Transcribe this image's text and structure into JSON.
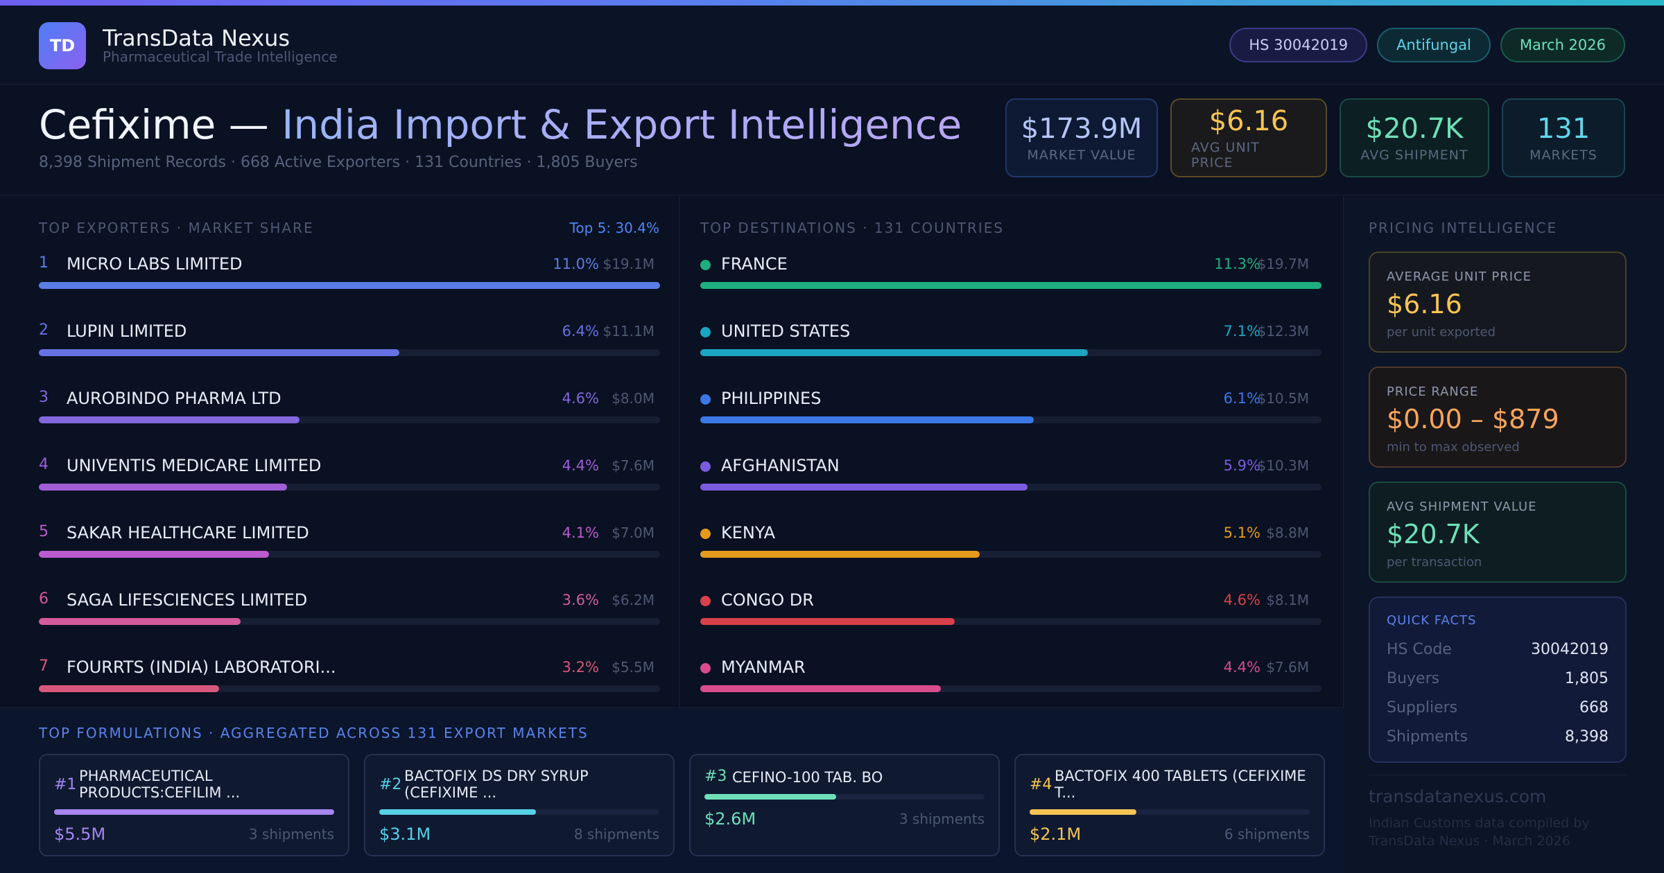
{
  "brand": {
    "logo_text": "TD",
    "name": "TransData Nexus",
    "subtitle": "Pharmaceutical Trade Intelligence"
  },
  "pills": {
    "hs": "HS 30042019",
    "category": "Antifungal",
    "date": "March 2026"
  },
  "title": {
    "main": "Cefixime — ",
    "accent": "India Import & Export Intelligence",
    "subtitle": "8,398 Shipment Records · 668 Active Exporters · 131 Countries · 1,805 Buyers"
  },
  "kpis": [
    {
      "value": "$173.9M",
      "label": "MARKET VALUE"
    },
    {
      "value": "$6.16",
      "label": "AVG UNIT PRICE"
    },
    {
      "value": "$20.7K",
      "label": "AVG SHIPMENT"
    },
    {
      "value": "131",
      "label": "MARKETS"
    }
  ],
  "exporters": {
    "title": "TOP EXPORTERS · MARKET SHARE",
    "note": "Top 5: 30.4%",
    "items": [
      {
        "rank": "1",
        "name": "MICRO LABS LIMITED",
        "pct": "11.0%",
        "amount": "$19.1M",
        "share": 1.0,
        "color": "#5b7de6"
      },
      {
        "rank": "2",
        "name": "LUPIN LIMITED",
        "pct": "6.4%",
        "amount": "$11.1M",
        "share": 0.58,
        "color": "#6672e3"
      },
      {
        "rank": "3",
        "name": "AUROBINDO PHARMA LTD",
        "pct": "4.6%",
        "amount": "$8.0M",
        "share": 0.42,
        "color": "#8367de"
      },
      {
        "rank": "4",
        "name": "UNIVENTIS MEDICARE LIMITED",
        "pct": "4.4%",
        "amount": "$7.6M",
        "share": 0.4,
        "color": "#a05dd6"
      },
      {
        "rank": "5",
        "name": "SAKAR HEALTHCARE LIMITED",
        "pct": "4.1%",
        "amount": "$7.0M",
        "share": 0.37,
        "color": "#bb5bce"
      },
      {
        "rank": "6",
        "name": "SAGA LIFESCIENCES LIMITED",
        "pct": "3.6%",
        "amount": "$6.2M",
        "share": 0.325,
        "color": "#d35a9c"
      },
      {
        "rank": "7",
        "name": "FOURRTS (INDIA) LABORATORI...",
        "pct": "3.2%",
        "amount": "$5.5M",
        "share": 0.29,
        "color": "#d8587b"
      }
    ]
  },
  "destinations": {
    "title": "TOP DESTINATIONS · 131 COUNTRIES",
    "items": [
      {
        "name": "FRANCE",
        "pct": "11.3%",
        "amount": "$19.7M",
        "share": 1.0,
        "color": "#1fae7f"
      },
      {
        "name": "UNITED STATES",
        "pct": "7.1%",
        "amount": "$12.3M",
        "share": 0.624,
        "color": "#1aa6c2"
      },
      {
        "name": "PHILIPPINES",
        "pct": "6.1%",
        "amount": "$10.5M",
        "share": 0.537,
        "color": "#3b78e6"
      },
      {
        "name": "AFGHANISTAN",
        "pct": "5.9%",
        "amount": "$10.3M",
        "share": 0.527,
        "color": "#7a5ce0"
      },
      {
        "name": "KENYA",
        "pct": "5.1%",
        "amount": "$8.8M",
        "share": 0.45,
        "color": "#e69a1c"
      },
      {
        "name": "CONGO DR",
        "pct": "4.6%",
        "amount": "$8.1M",
        "share": 0.41,
        "color": "#d9414a"
      },
      {
        "name": "MYANMAR",
        "pct": "4.4%",
        "amount": "$7.6M",
        "share": 0.387,
        "color": "#d94c8c"
      }
    ]
  },
  "formulations": {
    "title": "TOP FORMULATIONS · AGGREGATED ACROSS 131 EXPORT MARKETS",
    "items": [
      {
        "rank": "#1",
        "name": "PHARMACEUTICAL PRODUCTS:CEFILIM ...",
        "value": "$5.5M",
        "shipments": "3 shipments",
        "share": 1.0,
        "color": "#a685f0"
      },
      {
        "rank": "#2",
        "name": "BACTOFIX DS DRY SYRUP (CEFIXIME ...",
        "value": "$3.1M",
        "shipments": "8 shipments",
        "share": 0.56,
        "color": "#56d0e6"
      },
      {
        "rank": "#3",
        "name": "CEFINO-100 TAB. BO",
        "value": "$2.6M",
        "shipments": "3 shipments",
        "share": 0.47,
        "color": "#6ee0b8"
      },
      {
        "rank": "#4",
        "name": "BACTOFIX 400 TABLETS (CEFIXIME T...",
        "value": "$2.1M",
        "shipments": "6 shipments",
        "share": 0.38,
        "color": "#f6c453"
      }
    ]
  },
  "pricing": {
    "title": "PRICING INTELLIGENCE",
    "cards": [
      {
        "label": "AVERAGE UNIT PRICE",
        "value": "$6.16",
        "sub": "per unit exported"
      },
      {
        "label": "PRICE RANGE",
        "value": "$0.00 – $879",
        "sub": "min to max observed"
      },
      {
        "label": "AVG SHIPMENT VALUE",
        "value": "$20.7K",
        "sub": "per transaction"
      }
    ],
    "quick_facts": {
      "title": "QUICK FACTS",
      "rows": [
        {
          "key": "HS Code",
          "value": "30042019"
        },
        {
          "key": "Buyers",
          "value": "1,805"
        },
        {
          "key": "Suppliers",
          "value": "668"
        },
        {
          "key": "Shipments",
          "value": "8,398"
        }
      ]
    },
    "footer_site": "transdatanexus.com",
    "footer_note": "Indian Customs data compiled by TransData Nexus · March 2026"
  }
}
